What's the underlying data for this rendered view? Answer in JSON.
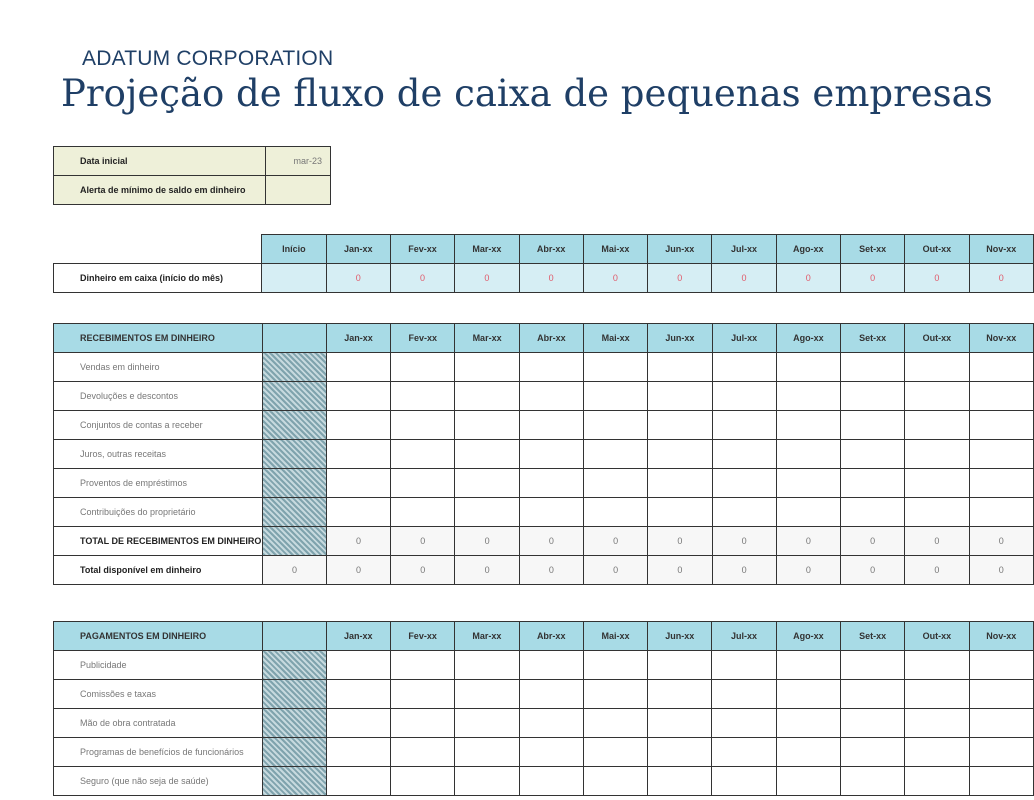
{
  "company": "ADATUM CORPORATION",
  "title": "Projeção de fluxo de caixa de pequenas empresas",
  "colors": {
    "header": "#a8dbe6",
    "cash_cells": "#d6eef4",
    "info_fill": "#eef0d9",
    "negative_zero": "#e05a6a",
    "title": "#1f3f66"
  },
  "info": {
    "start_date_label": "Data inicial",
    "start_date_value": "mar-23",
    "min_cash_alert_label": "Alerta de mínimo de saldo em dinheiro",
    "min_cash_alert_value": ""
  },
  "start_label": "Início",
  "months": [
    "Jan-xx",
    "Fev-xx",
    "Mar-xx",
    "Abr-xx",
    "Mai-xx",
    "Jun-xx",
    "Jul-xx",
    "Ago-xx",
    "Set-xx",
    "Out-xx",
    "Nov-xx"
  ],
  "cash_on_hand": {
    "label": "Dinheiro em caixa (início do mês)",
    "start": "",
    "values": [
      "0",
      "0",
      "0",
      "0",
      "0",
      "0",
      "0",
      "0",
      "0",
      "0",
      "0"
    ]
  },
  "receipts": {
    "header": "RECEBIMENTOS EM DINHEIRO",
    "items": [
      "Vendas em dinheiro",
      "Devoluções e descontos",
      "Conjuntos de contas a receber",
      "Juros, outras receitas",
      "Proventos de empréstimos",
      "Contribuições do proprietário"
    ],
    "total": {
      "label": "TOTAL DE RECEBIMENTOS EM DINHEIRO",
      "values": [
        "0",
        "0",
        "0",
        "0",
        "0",
        "0",
        "0",
        "0",
        "0",
        "0",
        "0"
      ]
    },
    "available": {
      "label": "Total disponível em dinheiro",
      "start": "0",
      "values": [
        "0",
        "0",
        "0",
        "0",
        "0",
        "0",
        "0",
        "0",
        "0",
        "0",
        "0"
      ]
    }
  },
  "payments": {
    "header": "PAGAMENTOS EM DINHEIRO",
    "items": [
      "Publicidade",
      "Comissões e taxas",
      "Mão de obra contratada",
      "Programas de benefícios de funcionários",
      "Seguro (que não seja de saúde)"
    ]
  }
}
